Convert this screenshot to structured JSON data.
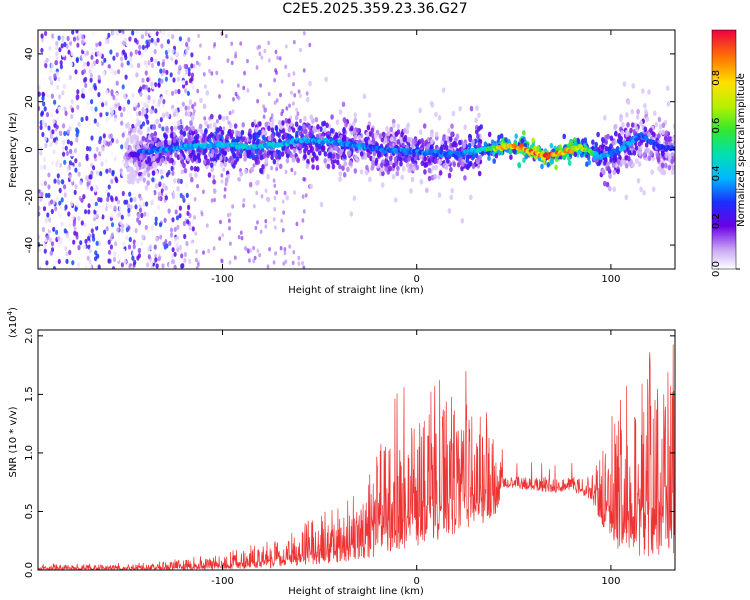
{
  "title": "C2E5.2025.359.23.36.G27",
  "chart_data": [
    {
      "type": "heatmap",
      "xlabel": "Height of straight line (km)",
      "ylabel": "Frequency (Hz)",
      "xlim": [
        -195,
        133
      ],
      "ylim": [
        -50,
        50
      ],
      "x_ticks": [
        -100,
        0,
        100
      ],
      "y_ticks": [
        -40,
        -20,
        0,
        20,
        40
      ],
      "x_tick_labels": [
        "-100",
        "0",
        "100"
      ],
      "y_tick_labels": [
        "-40",
        "-20",
        "0",
        "20",
        "40"
      ],
      "colorbar": {
        "label": "Normalized spectral amplitude",
        "range": [
          0.0,
          1.0
        ],
        "ticks": [
          0.0,
          0.2,
          0.4,
          0.6,
          0.8
        ],
        "tick_labels": [
          "0.0",
          "0.2",
          "0.4",
          "0.6",
          "0.8"
        ]
      },
      "ridge": {
        "x": [
          -195,
          -185,
          -170,
          -150,
          -140,
          -120,
          -100,
          -80,
          -60,
          -40,
          -20,
          0,
          20,
          35,
          45,
          55,
          65,
          75,
          85,
          95,
          105,
          115,
          125,
          133
        ],
        "freq": [
          -6,
          -4,
          -4,
          -3,
          -1,
          1,
          2,
          1,
          4,
          3,
          0,
          -1,
          -2,
          0,
          1,
          1,
          -3,
          -1,
          1,
          -3,
          0,
          6,
          1,
          0
        ],
        "peak_amplitude": [
          0.3,
          0.35,
          0.2,
          0.1,
          0.35,
          0.4,
          0.45,
          0.45,
          0.4,
          0.4,
          0.35,
          0.35,
          0.35,
          0.5,
          0.9,
          0.9,
          1.0,
          0.9,
          0.8,
          0.4,
          0.4,
          0.35,
          0.3,
          0.3
        ]
      }
    },
    {
      "type": "line",
      "xlabel": "Height of straight line (km)",
      "ylabel": "SNR (10 * v/v)",
      "y_multiplier_label": "(x10",
      "y_multiplier_exp": "4",
      "y_multiplier_suffix": ")",
      "xlim": [
        -195,
        133
      ],
      "ylim": [
        0.0,
        2.05
      ],
      "x_ticks": [
        -100,
        0,
        100
      ],
      "y_ticks": [
        0.0,
        0.5,
        1.0,
        1.5,
        2.0
      ],
      "x_tick_labels": [
        "-100",
        "0",
        "100"
      ],
      "y_tick_labels": [
        "0.0",
        "0.5",
        "1.0",
        "1.5",
        "2.0"
      ],
      "color": "#ee3333",
      "envelope": {
        "x": [
          -195,
          -150,
          -130,
          -110,
          -90,
          -70,
          -50,
          -30,
          -20,
          -10,
          0,
          10,
          20,
          30,
          40,
          45,
          50,
          60,
          70,
          80,
          90,
          95,
          100,
          110,
          120,
          130,
          133
        ],
        "upper": [
          0.04,
          0.05,
          0.07,
          0.1,
          0.16,
          0.25,
          0.38,
          0.55,
          1.0,
          1.3,
          1.25,
          1.35,
          1.45,
          1.4,
          1.1,
          0.8,
          0.8,
          0.8,
          0.78,
          0.8,
          0.8,
          1.0,
          1.2,
          1.4,
          1.55,
          1.7,
          1.8
        ],
        "lower": [
          0.0,
          0.0,
          0.0,
          0.0,
          0.01,
          0.02,
          0.05,
          0.08,
          0.1,
          0.15,
          0.2,
          0.25,
          0.3,
          0.35,
          0.45,
          0.7,
          0.7,
          0.68,
          0.66,
          0.68,
          0.6,
          0.4,
          0.2,
          0.12,
          0.1,
          0.12,
          0.15
        ]
      }
    }
  ]
}
